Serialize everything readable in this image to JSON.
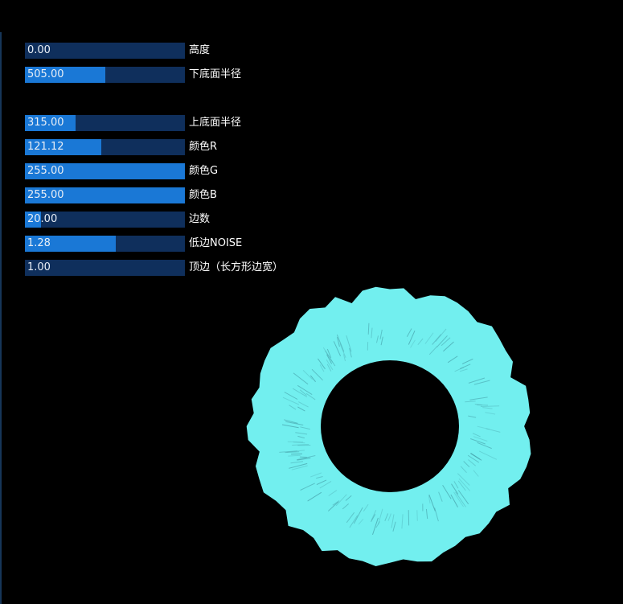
{
  "controls": [
    {
      "value": "0.00",
      "label": "高度",
      "fill": 0.0
    },
    {
      "value": "505.00",
      "label": "下底面半径",
      "fill": 0.505
    },
    {
      "value": "315.00",
      "label": "上底面半径",
      "fill": 0.315
    },
    {
      "value": "121.12",
      "label": "颜色R",
      "fill": 0.475
    },
    {
      "value": "255.00",
      "label": "颜色G",
      "fill": 1.0
    },
    {
      "value": "255.00",
      "label": "颜色B",
      "fill": 1.0
    },
    {
      "value": "20.00",
      "label": "边数",
      "fill": 0.1
    },
    {
      "value": "1.28",
      "label": "低边NOISE",
      "fill": 0.57
    },
    {
      "value": "1.00",
      "label": "顶边（长方形边宽）",
      "fill": 0.0
    }
  ],
  "colors": {
    "background": "#000000",
    "slider_track": "#0f2f5c",
    "slider_fill": "#1a78d6",
    "ring": "#72efef",
    "ring_streak": "#4aa8b0"
  }
}
